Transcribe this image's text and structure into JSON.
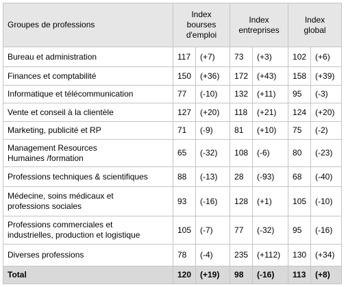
{
  "table": {
    "header": [
      "Groupes de professions",
      "Index\nbourses\nd'emploi",
      "Index\nentreprises",
      "Index\nglobal"
    ],
    "rows": [
      [
        "Bureau et administration",
        "117",
        "(+7)",
        "73",
        "(+3)",
        "102",
        "(+6)"
      ],
      [
        "Finances et comptabilité",
        "150",
        "(+36)",
        "172",
        "(+43)",
        "158",
        "(+39)"
      ],
      [
        "Informatique et télécommunication",
        "77",
        "(-10)",
        "132",
        "(+11)",
        "95",
        "(-3)"
      ],
      [
        "Vente et conseil à la clientèle",
        "127",
        "(+20)",
        "118",
        "(+21)",
        "124",
        "(+20)"
      ],
      [
        "Marketing, publicité et RP",
        "71",
        "(-9)",
        "81",
        "(+10)",
        "75",
        "(-2)"
      ],
      [
        "Management Resources\nHumaines /formation",
        "65",
        "(-32)",
        "108",
        "(-6)",
        "80",
        "(-23)"
      ],
      [
        "Professions techniques & scientifiques",
        "88",
        "(-13)",
        "28",
        "(-93)",
        "68",
        "(-40)"
      ],
      [
        "Médecine, soins médicaux et\nprofessions sociales",
        "93",
        "(-16)",
        "128",
        "(+1)",
        "105",
        "(-10)"
      ],
      [
        "Professions commerciales et\nindustrielles, production et logistique",
        "105",
        "(-7)",
        "77",
        "(-32)",
        "95",
        "(-16)"
      ],
      [
        "Diverses professions",
        "78",
        "(-4)",
        "235",
        "(+112)",
        "130",
        "(+34)"
      ]
    ],
    "total": [
      "Total",
      "120",
      "(+19)",
      "98",
      "(-16)",
      "113",
      "(+8)"
    ]
  }
}
